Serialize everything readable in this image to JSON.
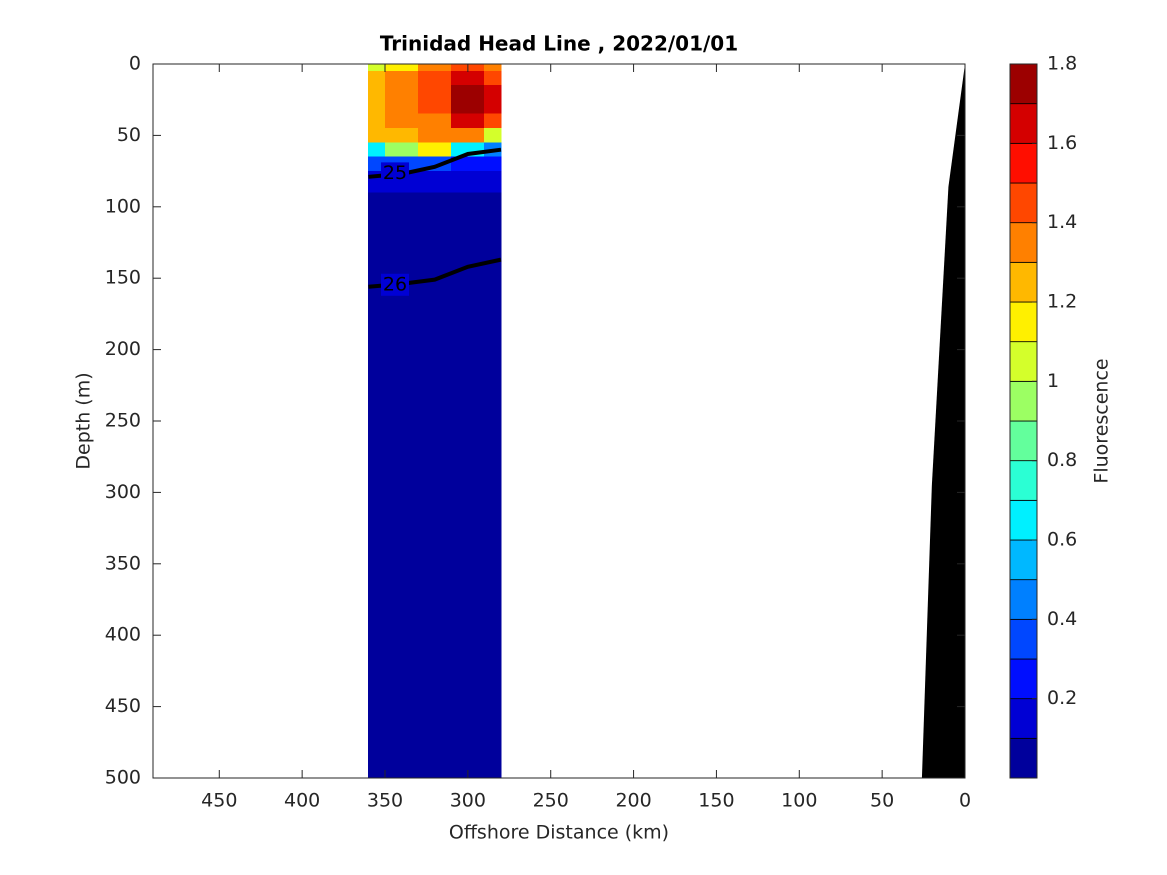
{
  "chart_data": {
    "type": "contour",
    "title": "Trinidad Head Line , 2022/01/01",
    "x_label": "Offshore Distance (km)",
    "y_label": "Depth (m)",
    "xlim": [
      490,
      0
    ],
    "ylim": [
      0,
      500
    ],
    "xticks": [
      450,
      400,
      350,
      300,
      250,
      200,
      150,
      100,
      50,
      0
    ],
    "yticks": [
      0,
      50,
      100,
      150,
      200,
      250,
      300,
      350,
      400,
      450,
      500
    ],
    "field": {
      "x": [
        360,
        340,
        320,
        300,
        280
      ],
      "depth": [
        0,
        10,
        20,
        30,
        40,
        50,
        60,
        70,
        80,
        100,
        200,
        300,
        400,
        500
      ],
      "values": [
        [
          1.0,
          1.1,
          1.4,
          1.5,
          1.4
        ],
        [
          1.2,
          1.3,
          1.5,
          1.6,
          1.5
        ],
        [
          1.2,
          1.3,
          1.5,
          1.7,
          1.6
        ],
        [
          1.2,
          1.3,
          1.5,
          1.7,
          1.6
        ],
        [
          1.2,
          1.3,
          1.4,
          1.6,
          1.5
        ],
        [
          1.2,
          1.2,
          1.3,
          1.3,
          1.0
        ],
        [
          0.7,
          0.9,
          1.1,
          0.6,
          0.4
        ],
        [
          0.3,
          0.3,
          0.3,
          0.2,
          0.2
        ],
        [
          0.1,
          0.1,
          0.1,
          0.1,
          0.1
        ],
        [
          0.05,
          0.05,
          0.05,
          0.05,
          0.05
        ],
        [
          0.05,
          0.05,
          0.05,
          0.05,
          0.05
        ],
        [
          0.05,
          0.05,
          0.05,
          0.05,
          0.05
        ],
        [
          0.05,
          0.05,
          0.05,
          0.05,
          0.05
        ],
        [
          0.05,
          0.05,
          0.05,
          0.05,
          0.05
        ]
      ]
    },
    "contours": [
      {
        "level": 25,
        "x": [
          360,
          340,
          320,
          300,
          280
        ],
        "depth": [
          79,
          77,
          72,
          63,
          60
        ]
      },
      {
        "level": 26,
        "x": [
          360,
          340,
          320,
          300,
          280
        ],
        "depth": [
          156,
          154,
          151,
          142,
          137
        ]
      }
    ],
    "bottom": {
      "x": [
        0,
        10,
        20,
        26
      ],
      "depth": [
        0,
        86,
        295,
        500
      ],
      "color": "#000000"
    },
    "colorbar": {
      "label": "Fluorescence",
      "clim": [
        0,
        1.8
      ],
      "ticks": [
        0.2,
        0.4,
        0.6,
        0.8,
        1,
        1.2,
        1.4,
        1.6,
        1.8
      ],
      "colors": [
        "#00009c",
        "#0000d4",
        "#000eff",
        "#0047ff",
        "#0080ff",
        "#00b8ff",
        "#00f0ff",
        "#2bffd4",
        "#63ff9c",
        "#9cff63",
        "#d4ff2b",
        "#fff000",
        "#ffb800",
        "#ff8000",
        "#ff4700",
        "#ff0e00",
        "#d40000",
        "#9c0000"
      ]
    }
  }
}
